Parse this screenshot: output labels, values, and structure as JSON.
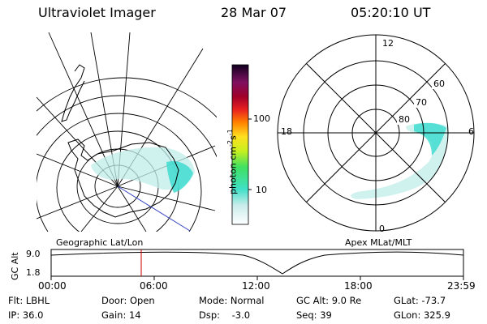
{
  "header": {
    "title": "Ultraviolet Imager",
    "date": "28 Mar 07",
    "time": "05:20:10 UT"
  },
  "colorbar": {
    "unit_label": "photon cm",
    "unit_exp1": "-2",
    "unit_s": "s",
    "unit_exp2": "-1",
    "tick_100": "100",
    "tick_10": "10"
  },
  "polar_plot": {
    "hour_12": "12",
    "hour_18": "18",
    "hour_6": "6",
    "hour_0": "0",
    "lat_60": "60",
    "lat_70": "70",
    "lat_80": "80"
  },
  "timeline": {
    "left_label": "Geographic Lat/Lon",
    "right_label": "Apex MLat/MLT",
    "axis_label": "GC Alt",
    "y_top": "9.0",
    "y_bottom": "1.8",
    "ticks": [
      "00:00",
      "06:00",
      "12:00",
      "18:00",
      "23:59"
    ]
  },
  "status": {
    "filter": "Flt: LBHL",
    "door": "Door: Open",
    "mode": "Mode: Normal",
    "gc_alt": "GC Alt: 9.0 Re",
    "glat": "GLat: -73.7",
    "ip": "IP: 36.0",
    "gain": "Gain: 14",
    "dsp": "Dsp:    -3.0",
    "seq": "Seq: 39",
    "glon": "GLon: 325.9"
  },
  "colors": {
    "aurora": "#80e0d8",
    "aurora_core": "#30d8c8",
    "coastline": "#000000",
    "marker": "#cc0000",
    "sat_track": "#3040c0"
  }
}
